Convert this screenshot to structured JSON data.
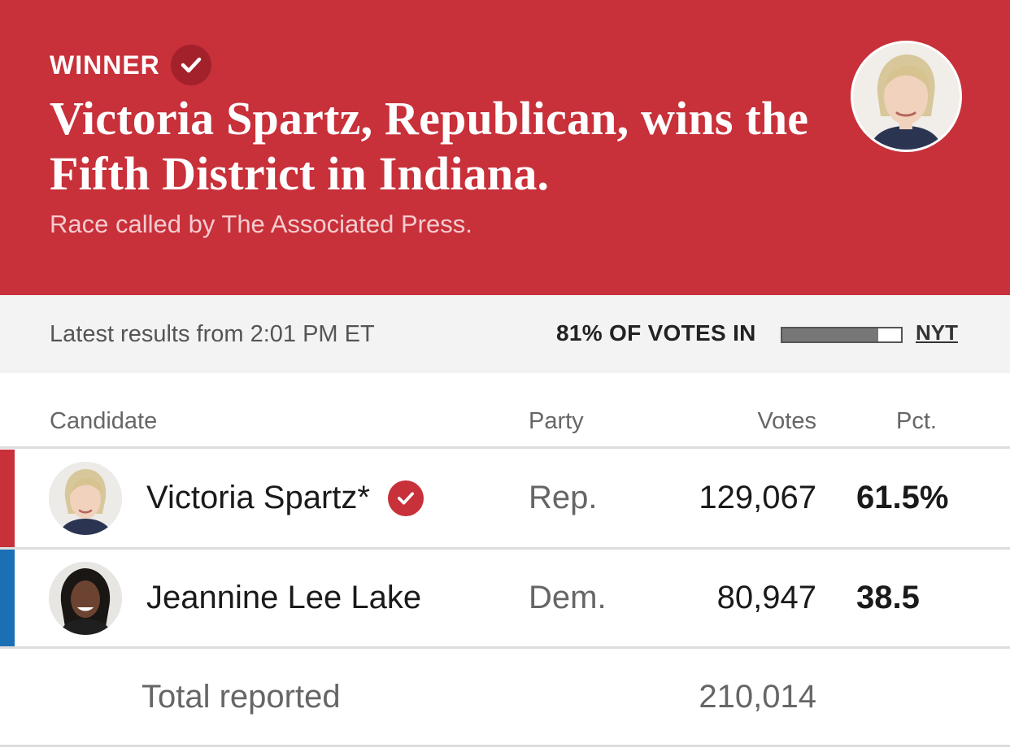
{
  "banner": {
    "label": "WINNER",
    "headline": "Victoria Spartz, Republican, wins the Fifth District in Indiana.",
    "subline": "Race called by The Associated Press."
  },
  "status": {
    "latest": "Latest results from 2:01 PM ET",
    "votes_in": "81% OF VOTES IN",
    "votes_in_fraction": 0.81,
    "source_link": "NYT"
  },
  "table": {
    "headers": {
      "candidate": "Candidate",
      "party": "Party",
      "votes": "Votes",
      "pct": "Pct."
    },
    "rows": [
      {
        "name": "Victoria Spartz*",
        "party": "Rep.",
        "votes": "129,067",
        "pct": "61.5%",
        "winner": true,
        "party_color": "#c8303a"
      },
      {
        "name": "Jeannine Lee Lake",
        "party": "Dem.",
        "votes": "80,947",
        "pct": "38.5",
        "winner": false,
        "party_color": "#1a6fb5"
      }
    ],
    "total_label": "Total reported",
    "total_votes": "210,014"
  },
  "colors": {
    "republican": "#c8303a",
    "democrat": "#1a6fb5",
    "banner": "#c8303a"
  },
  "icons": {
    "winner_badge": "check-circle-icon"
  }
}
